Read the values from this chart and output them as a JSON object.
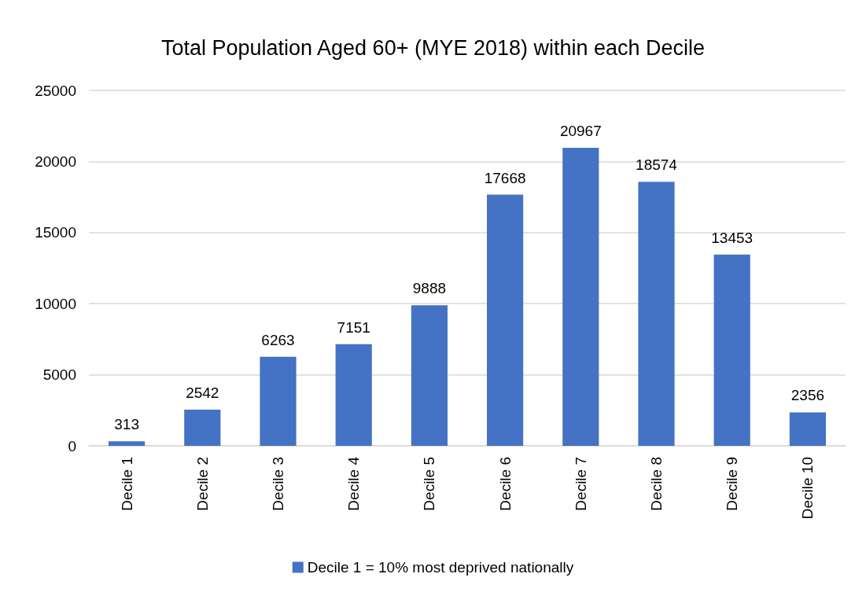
{
  "chart_data": {
    "type": "bar",
    "title": "Total Population Aged 60+ (MYE 2018) within each Decile",
    "categories": [
      "Decile 1",
      "Decile 2",
      "Decile 3",
      "Decile 4",
      "Decile 5",
      "Decile 6",
      "Decile 7",
      "Decile 8",
      "Decile 9",
      "Decile 10"
    ],
    "series": [
      {
        "name": "Decile 1 = 10% most deprived nationally",
        "color": "#4472c4",
        "values": [
          313,
          2542,
          6263,
          7151,
          9888,
          17668,
          20967,
          18574,
          13453,
          2356
        ]
      }
    ],
    "ylim": [
      0,
      25000
    ],
    "yticks": [
      0,
      5000,
      10000,
      15000,
      20000,
      25000
    ],
    "grid": "y",
    "legend": "bottom",
    "data_labels": true
  }
}
